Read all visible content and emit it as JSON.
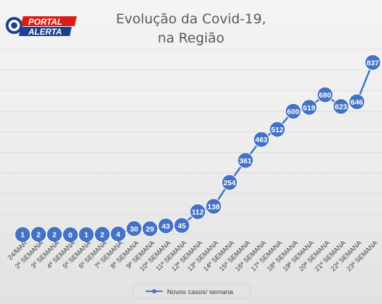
{
  "header": {
    "logo_top": "PORTAL",
    "logo_bottom": "ALERTA",
    "logo_colors": {
      "red": "#d91e18",
      "blue": "#1d3f8f",
      "dark": "#222222"
    }
  },
  "chart_data": {
    "type": "line",
    "title_lines": [
      "Evolução da Covid-19,",
      "na Região"
    ],
    "categories": [
      "24/MAR",
      "2ª SEMANA",
      "3ª SEMANA",
      "4ª SEMANA",
      "5ª SEMANA",
      "6ª SEMANA",
      "7ª SEMANA",
      "8ª SEMANA",
      "9ª SEMANA",
      "10ª SEMANA",
      "11ª SEMANA",
      "12ª SEMANA",
      "13ª SEMANA",
      "14ª SEMANA",
      "15ª SEMANA",
      "16ª SEMANA",
      "17ª SEMANA",
      "18ª SEMANA",
      "19ª SEMANA",
      "20ª SEMANA",
      "21ª SEMANA",
      "22ª SEMANA",
      "23ª SEMANA"
    ],
    "series": [
      {
        "name": "Novos casos/ semana",
        "values": [
          1,
          2,
          2,
          0,
          1,
          2,
          4,
          30,
          29,
          43,
          45,
          112,
          138,
          254,
          361,
          463,
          512,
          600,
          619,
          680,
          623,
          646,
          837
        ]
      }
    ],
    "ylim": [
      0,
      900
    ],
    "grid": true,
    "legend": "bottom-center",
    "colors": {
      "line": "#4472c4",
      "marker": "#4472c4",
      "grid": "#d9d9d9"
    }
  }
}
